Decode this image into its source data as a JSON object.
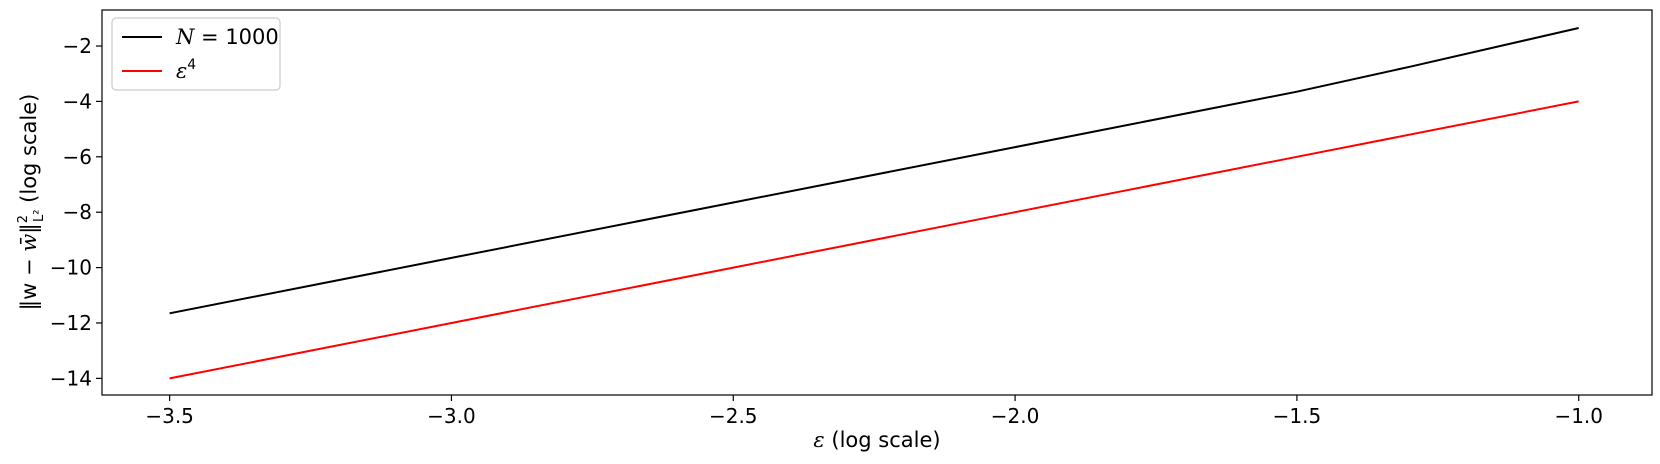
{
  "chart_data": {
    "type": "line",
    "title": "",
    "xlabel": {
      "symbol": "ε",
      "suffix": " (log scale)"
    },
    "ylabel": {
      "open": "‖w − ",
      "wbar": "w̄",
      "close": "‖",
      "sup": "2",
      "sub": "L²",
      "suffix": " (log scale)"
    },
    "xlim": [
      -3.62,
      -0.87
    ],
    "ylim": [
      -14.6,
      -0.7
    ],
    "xticks": [
      -3.5,
      -3.0,
      -2.5,
      -2.0,
      -1.5,
      -1.0
    ],
    "xtick_labels": [
      "−3.5",
      "−3.0",
      "−2.5",
      "−2.0",
      "−1.5",
      "−1.0"
    ],
    "yticks": [
      -14,
      -12,
      -10,
      -8,
      -6,
      -4,
      -2
    ],
    "ytick_labels": [
      "−14",
      "−12",
      "−10",
      "−8",
      "−6",
      "−4",
      "−2"
    ],
    "grid": false,
    "legend_position": "top-left",
    "series": [
      {
        "name_symbol": "N",
        "name_rest": " = 1000",
        "color": "#000000",
        "x": [
          -3.5,
          -3.0,
          -2.5,
          -2.0,
          -1.5,
          -1.3,
          -1.0
        ],
        "y": [
          -11.65,
          -9.65,
          -7.65,
          -5.65,
          -3.65,
          -2.75,
          -1.35
        ]
      },
      {
        "name_symbol": "ε",
        "name_sup": "4",
        "color": "#ff0000",
        "x": [
          -3.5,
          -3.0,
          -2.5,
          -2.0,
          -1.5,
          -1.0
        ],
        "y": [
          -14.0,
          -12.0,
          -10.0,
          -8.0,
          -6.0,
          -4.0
        ]
      }
    ]
  }
}
